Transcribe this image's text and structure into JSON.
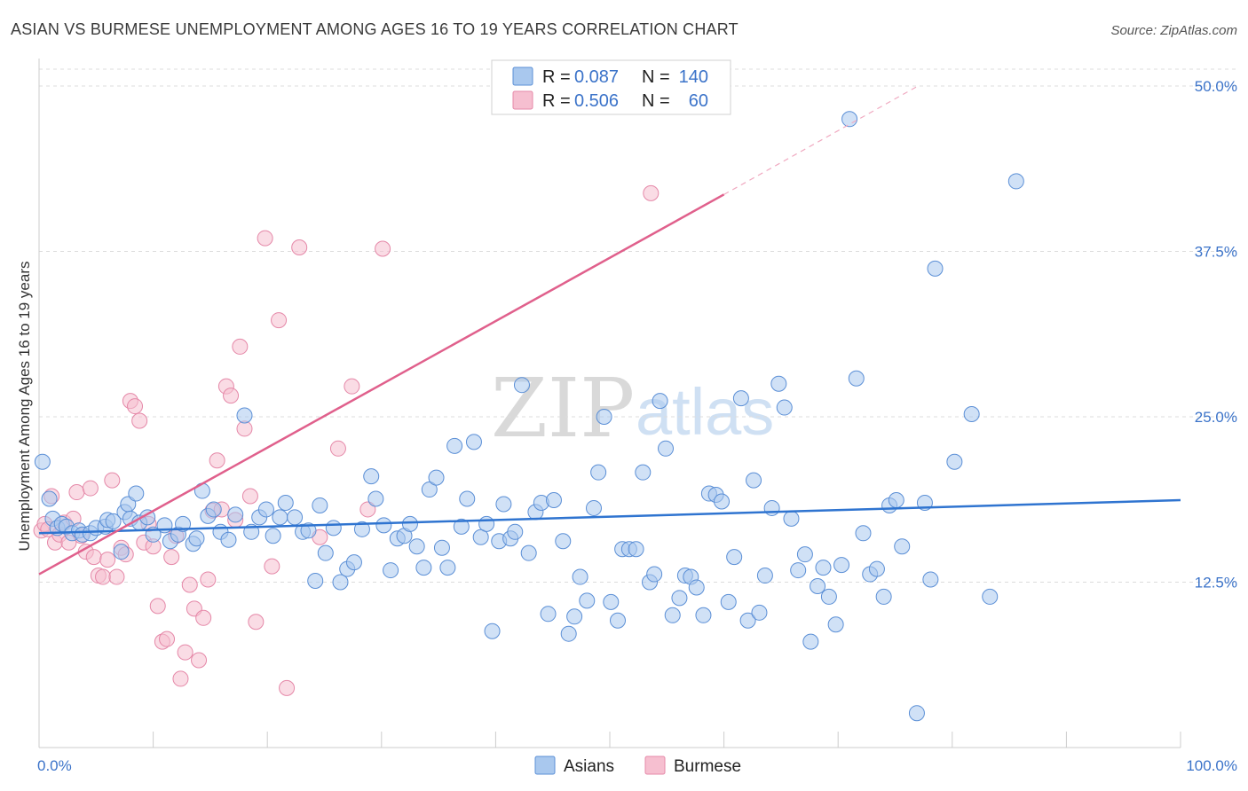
{
  "title": "ASIAN VS BURMESE UNEMPLOYMENT AMONG AGES 16 TO 19 YEARS CORRELATION CHART",
  "source": "Source: ZipAtlas.com",
  "watermark": {
    "zip": "ZIP",
    "atlas": "atlas"
  },
  "legend": {
    "r_label": "R =",
    "n_label": "N =",
    "rows": [
      {
        "r": "0.087",
        "n": "140"
      },
      {
        "r": "0.506",
        "n": "60"
      }
    ]
  },
  "colors": {
    "asian_fill": "#a9c8ee",
    "asian_stroke": "#5b8fd6",
    "asian_line": "#2f74d0",
    "burmese_fill": "#f6bfd0",
    "burmese_stroke": "#e588a8",
    "burmese_line": "#e0608c",
    "grid": "#dcdcdc",
    "tick_text": "#3b73c9"
  },
  "chart_data": {
    "type": "scatter",
    "title": "ASIAN VS BURMESE UNEMPLOYMENT AMONG AGES 16 TO 19 YEARS CORRELATION CHART",
    "xlabel": "",
    "ylabel": "Unemployment Among Ages 16 to 19 years",
    "xlim": [
      0,
      100
    ],
    "ylim": [
      0,
      52
    ],
    "x_tick_labels": [
      "0.0%",
      "100.0%"
    ],
    "y_ticks": [
      12.5,
      25.0,
      37.5,
      50.0
    ],
    "y_tick_labels": [
      "12.5%",
      "25.0%",
      "37.5%",
      "50.0%"
    ],
    "grid": "horizontal dashed",
    "legend_position": "bottom",
    "series": [
      {
        "name": "Asians",
        "r": 0.087,
        "n": 140,
        "trend": {
          "x": [
            0,
            100
          ],
          "y": [
            16.2,
            18.7
          ]
        },
        "points": [
          [
            0.3,
            21.6
          ],
          [
            0.9,
            18.8
          ],
          [
            1.2,
            17.3
          ],
          [
            1.6,
            16.6
          ],
          [
            2,
            16.9
          ],
          [
            2.4,
            16.7
          ],
          [
            2.9,
            16.2
          ],
          [
            3.5,
            16.4
          ],
          [
            3.8,
            16.1
          ],
          [
            4.5,
            16.2
          ],
          [
            5,
            16.6
          ],
          [
            5.8,
            16.7
          ],
          [
            6,
            17.2
          ],
          [
            6.5,
            17.1
          ],
          [
            7.2,
            14.8
          ],
          [
            7.5,
            17.8
          ],
          [
            7.8,
            18.4
          ],
          [
            8,
            17.3
          ],
          [
            8.5,
            19.2
          ],
          [
            8.8,
            17.0
          ],
          [
            9.5,
            17.4
          ],
          [
            10,
            16.1
          ],
          [
            11,
            16.8
          ],
          [
            11.5,
            15.6
          ],
          [
            12.2,
            16.1
          ],
          [
            12.6,
            16.9
          ],
          [
            13.5,
            15.4
          ],
          [
            13.8,
            15.8
          ],
          [
            14.3,
            19.4
          ],
          [
            14.8,
            17.5
          ],
          [
            15.3,
            18.0
          ],
          [
            15.9,
            16.3
          ],
          [
            16.6,
            15.7
          ],
          [
            17.2,
            17.6
          ],
          [
            18.0,
            25.1
          ],
          [
            18.6,
            16.3
          ],
          [
            19.3,
            17.4
          ],
          [
            19.9,
            18.0
          ],
          [
            20.5,
            16.0
          ],
          [
            21.1,
            17.4
          ],
          [
            21.6,
            18.5
          ],
          [
            22.4,
            17.4
          ],
          [
            23.1,
            16.3
          ],
          [
            23.6,
            16.4
          ],
          [
            24.2,
            12.6
          ],
          [
            24.6,
            18.3
          ],
          [
            25.1,
            14.7
          ],
          [
            25.8,
            16.6
          ],
          [
            26.4,
            12.5
          ],
          [
            27.0,
            13.5
          ],
          [
            27.6,
            14.0
          ],
          [
            28.3,
            16.5
          ],
          [
            29.1,
            20.5
          ],
          [
            29.5,
            18.8
          ],
          [
            30.2,
            16.8
          ],
          [
            30.8,
            13.4
          ],
          [
            31.4,
            15.8
          ],
          [
            32.0,
            16.0
          ],
          [
            32.5,
            16.9
          ],
          [
            33.1,
            15.2
          ],
          [
            33.7,
            13.6
          ],
          [
            34.2,
            19.5
          ],
          [
            34.8,
            20.4
          ],
          [
            35.3,
            15.1
          ],
          [
            35.8,
            13.6
          ],
          [
            36.4,
            22.8
          ],
          [
            37.0,
            16.7
          ],
          [
            37.5,
            18.8
          ],
          [
            38.1,
            23.1
          ],
          [
            38.7,
            15.9
          ],
          [
            39.2,
            16.9
          ],
          [
            39.7,
            8.8
          ],
          [
            40.3,
            15.6
          ],
          [
            40.7,
            18.4
          ],
          [
            41.3,
            15.8
          ],
          [
            41.7,
            16.3
          ],
          [
            42.3,
            27.4
          ],
          [
            42.9,
            14.7
          ],
          [
            43.5,
            17.8
          ],
          [
            44.0,
            18.5
          ],
          [
            44.6,
            10.1
          ],
          [
            45.1,
            18.7
          ],
          [
            45.9,
            15.6
          ],
          [
            46.4,
            8.6
          ],
          [
            46.9,
            9.9
          ],
          [
            47.4,
            12.9
          ],
          [
            48.0,
            11.1
          ],
          [
            48.6,
            18.1
          ],
          [
            49.0,
            20.8
          ],
          [
            49.5,
            25.0
          ],
          [
            50.1,
            11.0
          ],
          [
            50.7,
            9.6
          ],
          [
            51.1,
            15.0
          ],
          [
            51.7,
            15.0
          ],
          [
            52.3,
            15.0
          ],
          [
            52.9,
            20.8
          ],
          [
            53.5,
            12.5
          ],
          [
            53.9,
            13.1
          ],
          [
            54.4,
            26.2
          ],
          [
            54.9,
            22.6
          ],
          [
            55.5,
            10.0
          ],
          [
            56.1,
            11.3
          ],
          [
            56.6,
            13.0
          ],
          [
            57.1,
            12.9
          ],
          [
            57.6,
            12.1
          ],
          [
            58.2,
            10.0
          ],
          [
            58.7,
            19.2
          ],
          [
            59.3,
            19.1
          ],
          [
            59.8,
            18.6
          ],
          [
            60.4,
            11.0
          ],
          [
            60.9,
            14.4
          ],
          [
            61.5,
            26.4
          ],
          [
            62.1,
            9.6
          ],
          [
            62.6,
            20.2
          ],
          [
            63.1,
            10.2
          ],
          [
            63.6,
            13.0
          ],
          [
            64.2,
            18.1
          ],
          [
            64.8,
            27.5
          ],
          [
            65.3,
            25.7
          ],
          [
            65.9,
            17.3
          ],
          [
            66.5,
            13.4
          ],
          [
            67.1,
            14.6
          ],
          [
            67.6,
            8.0
          ],
          [
            68.2,
            12.2
          ],
          [
            68.7,
            13.6
          ],
          [
            69.2,
            11.4
          ],
          [
            69.8,
            9.3
          ],
          [
            70.3,
            13.8
          ],
          [
            71.0,
            47.5
          ],
          [
            71.6,
            27.9
          ],
          [
            72.2,
            16.2
          ],
          [
            72.8,
            13.1
          ],
          [
            73.4,
            13.5
          ],
          [
            74.0,
            11.4
          ],
          [
            74.5,
            18.3
          ],
          [
            75.1,
            18.7
          ],
          [
            75.6,
            15.2
          ],
          [
            76.9,
            2.6
          ],
          [
            77.6,
            18.5
          ],
          [
            78.1,
            12.7
          ],
          [
            78.5,
            36.2
          ],
          [
            80.2,
            21.6
          ],
          [
            81.7,
            25.2
          ],
          [
            83.3,
            11.4
          ],
          [
            85.6,
            42.8
          ],
          [
            58.3,
            49.2
          ]
        ]
      },
      {
        "name": "Burmese",
        "r": 0.506,
        "n": 60,
        "trend": {
          "x": [
            0,
            60
          ],
          "y": [
            13.1,
            41.8
          ],
          "extended": {
            "x": [
              60,
              77
            ],
            "y": [
              41.8,
              50
            ]
          }
        },
        "points": [
          [
            0.2,
            16.4
          ],
          [
            0.5,
            16.9
          ],
          [
            0.8,
            16.5
          ],
          [
            1.1,
            19.0
          ],
          [
            1.4,
            15.5
          ],
          [
            1.8,
            16.1
          ],
          [
            2.2,
            17.0
          ],
          [
            2.6,
            15.5
          ],
          [
            3.0,
            17.3
          ],
          [
            3.3,
            19.3
          ],
          [
            3.7,
            16.0
          ],
          [
            4.1,
            14.8
          ],
          [
            4.5,
            19.6
          ],
          [
            4.8,
            14.4
          ],
          [
            5.2,
            13.0
          ],
          [
            5.6,
            12.9
          ],
          [
            6.0,
            14.2
          ],
          [
            6.4,
            20.2
          ],
          [
            6.8,
            12.9
          ],
          [
            7.2,
            15.1
          ],
          [
            7.6,
            14.6
          ],
          [
            8.0,
            26.2
          ],
          [
            8.4,
            25.8
          ],
          [
            8.8,
            24.7
          ],
          [
            9.2,
            15.5
          ],
          [
            9.6,
            16.9
          ],
          [
            10.0,
            15.2
          ],
          [
            10.4,
            10.7
          ],
          [
            10.8,
            8.0
          ],
          [
            11.2,
            8.2
          ],
          [
            11.6,
            14.4
          ],
          [
            12.0,
            16.0
          ],
          [
            12.4,
            5.2
          ],
          [
            12.8,
            7.2
          ],
          [
            13.2,
            12.3
          ],
          [
            13.6,
            10.5
          ],
          [
            14.0,
            6.6
          ],
          [
            14.4,
            9.8
          ],
          [
            14.8,
            12.7
          ],
          [
            15.2,
            17.9
          ],
          [
            15.6,
            21.7
          ],
          [
            16.0,
            18.0
          ],
          [
            16.4,
            27.3
          ],
          [
            16.8,
            26.6
          ],
          [
            17.2,
            17.2
          ],
          [
            17.6,
            30.3
          ],
          [
            18.0,
            24.1
          ],
          [
            18.5,
            19.0
          ],
          [
            19.0,
            9.5
          ],
          [
            19.8,
            38.5
          ],
          [
            20.4,
            13.7
          ],
          [
            21.0,
            32.3
          ],
          [
            21.7,
            4.5
          ],
          [
            22.8,
            37.8
          ],
          [
            24.6,
            15.9
          ],
          [
            26.2,
            22.6
          ],
          [
            27.4,
            27.3
          ],
          [
            28.8,
            18.0
          ],
          [
            30.1,
            37.7
          ],
          [
            53.6,
            41.9
          ]
        ]
      }
    ]
  },
  "bottom_legend": [
    {
      "label": "Asians"
    },
    {
      "label": "Burmese"
    }
  ]
}
